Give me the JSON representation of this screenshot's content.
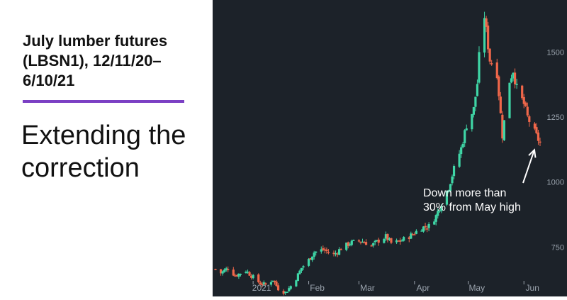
{
  "headline": "July lumber futures (LBSN1), 12/11/20–6/10/21",
  "subhead": "Extending the correction",
  "colors": {
    "background_chart": "#1c2229",
    "up": "#3fd6a6",
    "down": "#f0674a",
    "accent_rule": "#7b3fc4",
    "axis_text": "#9aa3ad",
    "annotation": "#ffffff"
  },
  "chart_data": {
    "type": "candlestick",
    "title": "",
    "xlabel": "",
    "ylabel": "",
    "ylim": [
      560,
      1700
    ],
    "grid": false,
    "y_ticks": [
      {
        "value": 750,
        "label": "750"
      },
      {
        "value": 1000,
        "label": "1000"
      },
      {
        "value": 1250,
        "label": "1250"
      },
      {
        "value": 1500,
        "label": "1500"
      }
    ],
    "x_ticks": [
      {
        "date": "2021-01-01",
        "label": "2021"
      },
      {
        "date": "2021-02-01",
        "label": "Feb"
      },
      {
        "date": "2021-03-01",
        "label": "Mar"
      },
      {
        "date": "2021-04-01",
        "label": "Apr"
      },
      {
        "date": "2021-05-01",
        "label": "May"
      },
      {
        "date": "2021-06-01",
        "label": "Jun"
      }
    ],
    "x_range": [
      "2020-12-11",
      "2021-06-10"
    ],
    "anchors": [
      [
        "2020-12-11",
        665
      ],
      [
        "2020-12-14",
        650
      ],
      [
        "2020-12-18",
        670
      ],
      [
        "2020-12-22",
        640
      ],
      [
        "2020-12-28",
        660
      ],
      [
        "2020-12-31",
        640
      ],
      [
        "2021-01-05",
        610
      ],
      [
        "2021-01-08",
        605
      ],
      [
        "2021-01-12",
        625
      ],
      [
        "2021-01-15",
        590
      ],
      [
        "2021-01-19",
        575
      ],
      [
        "2021-01-22",
        600
      ],
      [
        "2021-01-25",
        630
      ],
      [
        "2021-01-28",
        670
      ],
      [
        "2021-02-01",
        700
      ],
      [
        "2021-02-04",
        730
      ],
      [
        "2021-02-09",
        740
      ],
      [
        "2021-02-15",
        720
      ],
      [
        "2021-02-19",
        745
      ],
      [
        "2021-02-24",
        765
      ],
      [
        "2021-03-01",
        775
      ],
      [
        "2021-03-04",
        770
      ],
      [
        "2021-03-08",
        755
      ],
      [
        "2021-03-12",
        775
      ],
      [
        "2021-03-16",
        790
      ],
      [
        "2021-03-19",
        765
      ],
      [
        "2021-03-23",
        770
      ],
      [
        "2021-03-26",
        780
      ],
      [
        "2021-03-30",
        795
      ],
      [
        "2021-04-05",
        825
      ],
      [
        "2021-04-09",
        830
      ],
      [
        "2021-04-13",
        870
      ],
      [
        "2021-04-16",
        920
      ],
      [
        "2021-04-20",
        980
      ],
      [
        "2021-04-23",
        1050
      ],
      [
        "2021-04-27",
        1130
      ],
      [
        "2021-04-30",
        1220
      ],
      [
        "2021-05-04",
        1280
      ],
      [
        "2021-05-06",
        1380
      ],
      [
        "2021-05-07",
        1480
      ],
      [
        "2021-05-10",
        1640
      ],
      [
        "2021-05-11",
        1580
      ],
      [
        "2021-05-13",
        1470
      ],
      [
        "2021-05-17",
        1420
      ],
      [
        "2021-05-19",
        1260
      ],
      [
        "2021-05-20",
        1180
      ],
      [
        "2021-05-24",
        1390
      ],
      [
        "2021-05-26",
        1430
      ],
      [
        "2021-05-28",
        1360
      ],
      [
        "2021-06-01",
        1300
      ],
      [
        "2021-06-03",
        1250
      ],
      [
        "2021-06-07",
        1190
      ],
      [
        "2021-06-10",
        1150
      ]
    ],
    "annotation": {
      "text_lines": [
        "Down more than",
        "30% from May high"
      ],
      "target_date": "2021-06-10",
      "target_value": 1140
    }
  }
}
